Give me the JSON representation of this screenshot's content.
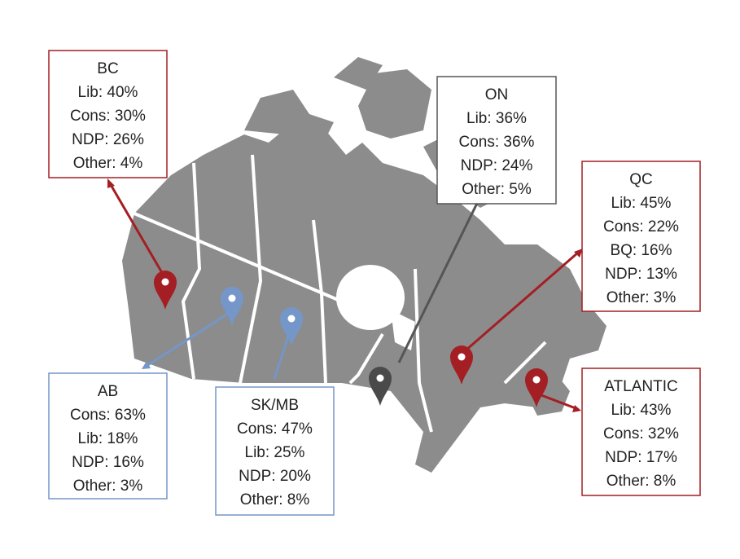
{
  "regions": [
    {
      "name": "BC",
      "lines": [
        "Lib: 40%",
        "Cons: 30%",
        "NDP: 26%",
        "Other: 4%"
      ]
    },
    {
      "name": "ON",
      "lines": [
        "Lib: 36%",
        "Cons: 36%",
        "NDP: 24%",
        "Other: 5%"
      ]
    },
    {
      "name": "QC",
      "lines": [
        "Lib: 45%",
        "Cons: 22%",
        "BQ: 16%",
        "NDP: 13%",
        "Other: 3%"
      ]
    },
    {
      "name": "AB",
      "lines": [
        "Cons: 63%",
        "Lib: 18%",
        "NDP: 16%",
        "Other: 3%"
      ]
    },
    {
      "name": "SK/MB",
      "lines": [
        "Cons: 47%",
        "Lib: 25%",
        "NDP: 20%",
        "Other: 8%"
      ]
    },
    {
      "name": "ATLANTIC",
      "lines": [
        "Lib: 43%",
        "Cons: 32%",
        "NDP: 17%",
        "Other: 8%"
      ]
    }
  ]
}
